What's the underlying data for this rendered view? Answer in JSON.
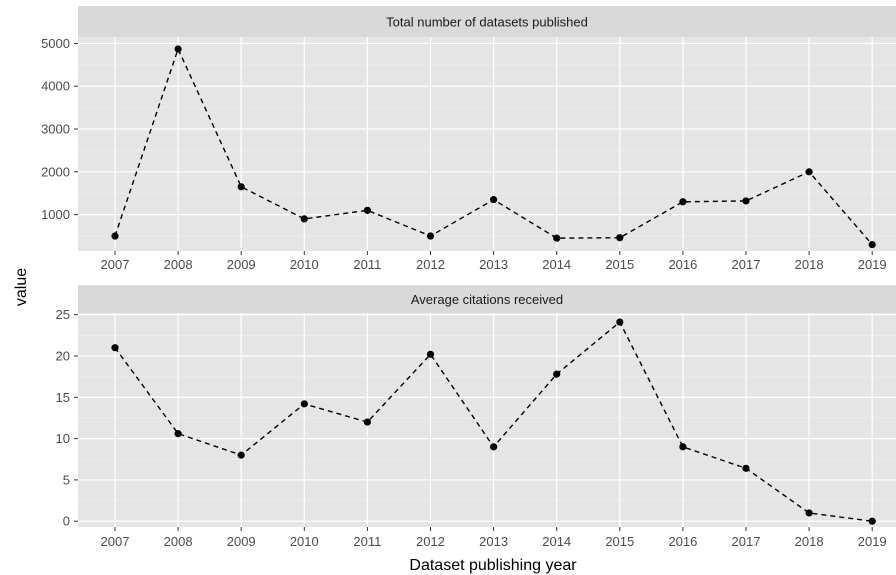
{
  "chart_data": {
    "type": "line",
    "xlabel": "Dataset publishing year",
    "ylabel": "value",
    "categories": [
      "2007",
      "2008",
      "2009",
      "2010",
      "2011",
      "2012",
      "2013",
      "2014",
      "2015",
      "2016",
      "2017",
      "2018",
      "2019"
    ],
    "facets": [
      {
        "title": "Total number of datasets published",
        "ylim": [
          150,
          5150
        ],
        "yticks": [
          1000,
          2000,
          3000,
          4000,
          5000
        ],
        "values": [
          500,
          4870,
          1650,
          900,
          1100,
          500,
          1350,
          450,
          460,
          1300,
          1320,
          2000,
          300
        ]
      },
      {
        "title": "Average citations received",
        "ylim": [
          -0.7,
          25.2
        ],
        "yticks": [
          0,
          5,
          10,
          15,
          20,
          25
        ],
        "values": [
          21,
          10.6,
          8,
          14.2,
          12,
          20.2,
          9,
          17.8,
          24.1,
          9,
          6.4,
          1,
          0
        ]
      }
    ],
    "grid": true,
    "legend": "none",
    "style": {
      "panel_bg": "#e5e5e5",
      "strip_bg": "#d9d9d9",
      "line_color": "#000000",
      "line_style": "dashed"
    }
  }
}
